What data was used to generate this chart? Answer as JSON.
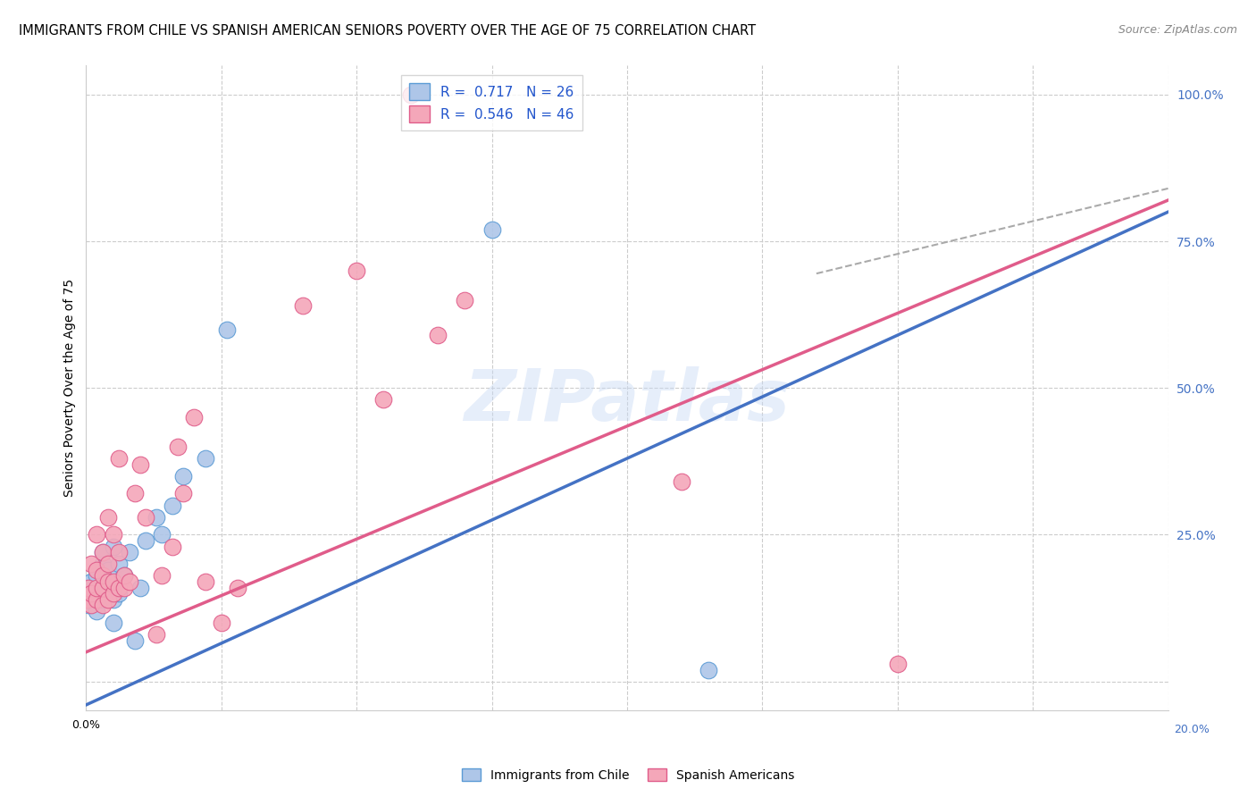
{
  "title": "IMMIGRANTS FROM CHILE VS SPANISH AMERICAN SENIORS POVERTY OVER THE AGE OF 75 CORRELATION CHART",
  "source": "Source: ZipAtlas.com",
  "ylabel": "Seniors Poverty Over the Age of 75",
  "xlim": [
    0,
    0.2
  ],
  "ylim": [
    -0.05,
    1.05
  ],
  "chile_scatter_x": [
    0.0005,
    0.001,
    0.001,
    0.0015,
    0.002,
    0.002,
    0.002,
    0.003,
    0.003,
    0.003,
    0.003,
    0.004,
    0.004,
    0.004,
    0.005,
    0.005,
    0.005,
    0.006,
    0.006,
    0.007,
    0.008,
    0.009,
    0.01,
    0.011,
    0.013,
    0.014,
    0.016,
    0.018,
    0.022,
    0.026,
    0.075,
    0.115
  ],
  "chile_scatter_y": [
    0.13,
    0.15,
    0.17,
    0.14,
    0.12,
    0.16,
    0.18,
    0.14,
    0.16,
    0.2,
    0.22,
    0.15,
    0.17,
    0.19,
    0.1,
    0.14,
    0.23,
    0.15,
    0.2,
    0.18,
    0.22,
    0.07,
    0.16,
    0.24,
    0.28,
    0.25,
    0.3,
    0.35,
    0.38,
    0.6,
    0.77,
    0.02
  ],
  "spanish_scatter_x": [
    0.0003,
    0.0005,
    0.001,
    0.001,
    0.001,
    0.002,
    0.002,
    0.002,
    0.002,
    0.003,
    0.003,
    0.003,
    0.003,
    0.004,
    0.004,
    0.004,
    0.004,
    0.005,
    0.005,
    0.005,
    0.006,
    0.006,
    0.006,
    0.007,
    0.007,
    0.008,
    0.009,
    0.01,
    0.011,
    0.013,
    0.014,
    0.016,
    0.017,
    0.018,
    0.02,
    0.022,
    0.025,
    0.028,
    0.04,
    0.05,
    0.055,
    0.06,
    0.065,
    0.07,
    0.11,
    0.15
  ],
  "spanish_scatter_y": [
    0.14,
    0.16,
    0.13,
    0.15,
    0.2,
    0.14,
    0.16,
    0.19,
    0.25,
    0.13,
    0.16,
    0.18,
    0.22,
    0.14,
    0.17,
    0.2,
    0.28,
    0.15,
    0.17,
    0.25,
    0.16,
    0.22,
    0.38,
    0.16,
    0.18,
    0.17,
    0.32,
    0.37,
    0.28,
    0.08,
    0.18,
    0.23,
    0.4,
    0.32,
    0.45,
    0.17,
    0.1,
    0.16,
    0.64,
    0.7,
    0.48,
    1.0,
    0.59,
    0.65,
    0.34,
    0.03
  ],
  "chile_line_color": "#4472c4",
  "spanish_line_color": "#e05c8a",
  "chile_line_x0": 0.0,
  "chile_line_y0": -0.04,
  "chile_line_x1": 0.2,
  "chile_line_y1": 0.8,
  "spanish_line_x0": 0.0,
  "spanish_line_y0": 0.05,
  "spanish_line_x1": 0.2,
  "spanish_line_y1": 0.82,
  "dash_line_x0": 0.135,
  "dash_line_y0": 0.695,
  "dash_line_x1": 0.2,
  "dash_line_y1": 0.84,
  "watermark": "ZIPatlas",
  "background_color": "#ffffff",
  "grid_color": "#cccccc",
  "right_axis_color": "#4472c4"
}
